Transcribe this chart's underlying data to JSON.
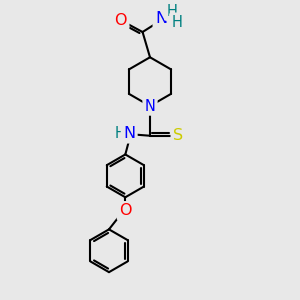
{
  "background_color": "#e8e8e8",
  "bond_color": "#000000",
  "atom_colors": {
    "O": "#ff0000",
    "N": "#0000ff",
    "S": "#cccc00",
    "H": "#008080",
    "C": "#000000"
  },
  "font_size_atoms": 10.5,
  "fig_size": [
    3.0,
    3.0
  ],
  "dpi": 100
}
